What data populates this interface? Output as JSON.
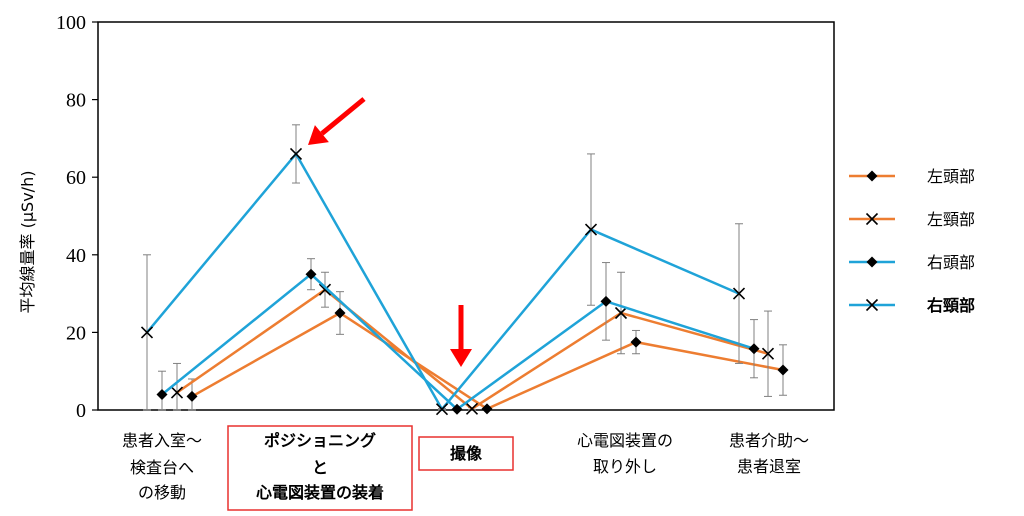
{
  "chart_data": {
    "type": "line",
    "ylabel": "平均線量率 (μSv/h)",
    "ylim": [
      0,
      100
    ],
    "yticks": [
      0,
      20,
      40,
      60,
      80,
      100
    ],
    "categories": [
      {
        "lines": [
          "患者入室～",
          "検査台へ",
          "の移動"
        ],
        "highlight": false
      },
      {
        "lines": [
          "ポジショニング",
          "と",
          "心電図装置の装着"
        ],
        "highlight": true
      },
      {
        "lines": [
          "撮像"
        ],
        "highlight": true
      },
      {
        "lines": [
          "心電図装置の",
          "取り外し"
        ],
        "highlight": false
      },
      {
        "lines": [
          "患者介助～",
          "患者退室"
        ],
        "highlight": false
      }
    ],
    "series": [
      {
        "name": "左頭部",
        "color": "#ED7D31",
        "marker": "diamond",
        "bold": false,
        "values": [
          3.5,
          25.0,
          0.3,
          17.5,
          10.3
        ],
        "errors": [
          4.5,
          5.5,
          0.3,
          3.0,
          6.5
        ]
      },
      {
        "name": "左頸部",
        "color": "#ED7D31",
        "marker": "x",
        "bold": false,
        "values": [
          4.5,
          31.0,
          0.3,
          25.0,
          14.5
        ],
        "errors": [
          7.5,
          4.5,
          0.3,
          10.5,
          11.0
        ]
      },
      {
        "name": "右頭部",
        "color": "#1FA3D8",
        "marker": "diamond",
        "bold": false,
        "values": [
          4.0,
          35.0,
          0.2,
          28.0,
          15.8
        ],
        "errors": [
          6.0,
          4.0,
          0.2,
          10.0,
          7.5
        ]
      },
      {
        "name": "右頸部",
        "color": "#1FA3D8",
        "marker": "x",
        "bold": true,
        "values": [
          20.0,
          66.0,
          0.2,
          46.5,
          30.0
        ],
        "errors": [
          20.0,
          7.5,
          0.2,
          19.5,
          18.0
        ]
      }
    ],
    "annotations": [
      {
        "type": "arrow",
        "color": "#FF0000",
        "target": "右頸部 at ポジショニングと心電図装置の装着"
      },
      {
        "type": "arrow",
        "color": "#FF0000",
        "target": "撮像"
      }
    ],
    "legend_position": "right",
    "grid": false
  }
}
